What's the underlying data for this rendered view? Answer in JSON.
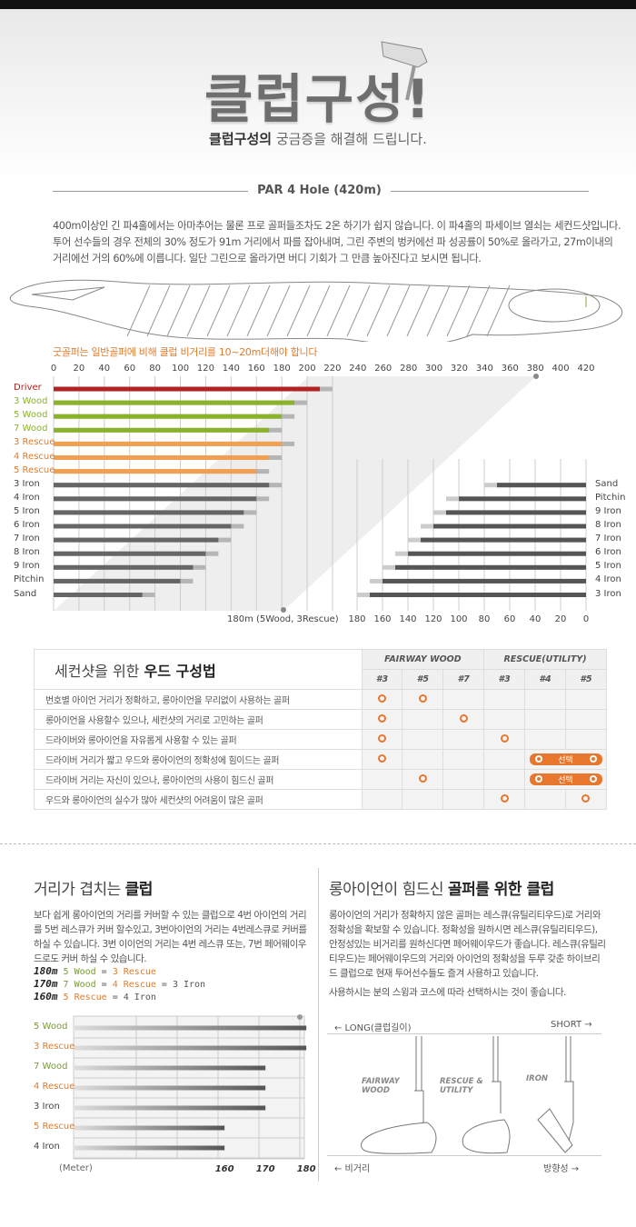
{
  "header": {
    "title": "클럽구성",
    "title_mark": "!",
    "subtitle_bold": "클럽구성의",
    "subtitle_rest": " 궁금증을 해결해 드립니다.",
    "section": "PAR 4 Hole (420m)"
  },
  "intro": {
    "lines": [
      "400m이상인 긴 파4홀에서는 아마추어는 물론 프로 골퍼들조차도 2온 하기가 쉽지 않습니다. 이 파4홀의 파세이브 열쇠는 세컨드샷입니다.",
      "투어 선수들의 경우 전체의 30% 정도가 91m 거리에서 파를 잡아내며, 그린 주변의 벙커에선 파 성공률이 50%로 올라가고, 27m이내의",
      "거리에선 거의 60%에 이릅니다. 일단 그린으로 올라가면 버디 기회가 그 만큼 높아진다고 보시면 됩니다."
    ]
  },
  "note": "굿골퍼는 일반골퍼에 비해 클럽 비거리를 10~20m더해야 합니다",
  "colors": {
    "driver": "#b22222",
    "wood": "#8ab32a",
    "rescue": "#f0a050",
    "iron": "#666666",
    "extra": "#b5b5b5",
    "accent": "#e8772e"
  },
  "chart_data": [
    {
      "type": "bar",
      "orientation": "horizontal",
      "xlim": [
        0,
        420
      ],
      "xticks": [
        0,
        20,
        40,
        60,
        80,
        100,
        120,
        140,
        160,
        180,
        200,
        220,
        240,
        260,
        280,
        300,
        320,
        340,
        360,
        380,
        400,
        420
      ],
      "annotation": "180m (5Wood, 3Rescue)",
      "categories": [
        "Driver",
        "3 Wood",
        "5 Wood",
        "7 Wood",
        "3 Rescue",
        "4 Rescue",
        "5 Rescue",
        "3 Iron",
        "4 Iron",
        "5 Iron",
        "6 Iron",
        "7 Iron",
        "8 Iron",
        "9 Iron",
        "Pitchin",
        "Sand"
      ],
      "groups": [
        "driver",
        "wood",
        "wood",
        "wood",
        "rescue",
        "rescue",
        "rescue",
        "iron",
        "iron",
        "iron",
        "iron",
        "iron",
        "iron",
        "iron",
        "iron",
        "iron"
      ],
      "series": [
        {
          "values": [
            210,
            190,
            180,
            170,
            180,
            170,
            160,
            170,
            160,
            150,
            140,
            130,
            120,
            110,
            100,
            70
          ]
        },
        {
          "values": [
            220,
            200,
            190,
            180,
            190,
            180,
            170,
            180,
            170,
            160,
            150,
            140,
            130,
            120,
            110,
            80
          ]
        }
      ]
    },
    {
      "type": "bar",
      "orientation": "horizontal",
      "reversed": true,
      "xlim": [
        0,
        180
      ],
      "xticks": [
        180,
        160,
        140,
        120,
        100,
        80,
        60,
        40,
        20,
        0
      ],
      "categories": [
        "Sand",
        "Pitchin",
        "9 Iron",
        "8 Iron",
        "7 Iron",
        "6 Iron",
        "5 Iron",
        "4 Iron",
        "3 Iron"
      ],
      "series": [
        {
          "values": [
            70,
            100,
            110,
            120,
            130,
            140,
            150,
            160,
            170
          ]
        },
        {
          "values": [
            80,
            110,
            120,
            130,
            140,
            150,
            160,
            170,
            180
          ]
        }
      ]
    },
    {
      "type": "bar",
      "orientation": "horizontal",
      "xlabel": "(Meter)",
      "xticks": [
        160,
        170,
        180
      ],
      "categories": [
        "5 Wood",
        "3 Rescue",
        "7 Wood",
        "4 Rescue",
        "3 Iron",
        "5 Rescue",
        "4 Iron"
      ],
      "groups": [
        "wood",
        "rescue",
        "wood",
        "rescue",
        "iron",
        "rescue",
        "iron"
      ],
      "values": [
        180,
        180,
        170,
        170,
        170,
        160,
        160
      ]
    }
  ],
  "table": {
    "title_light": "세컨샷을 위한 ",
    "title_bold": "우드 구성법",
    "group1": "FAIRWAY WOOD",
    "group2": "RESCUE(UTILITY)",
    "cols": [
      "#3",
      "#5",
      "#7",
      "#3",
      "#4",
      "#5"
    ],
    "select_label": "선택",
    "rows": [
      {
        "q": "번호별 아이언 거리가 정확하고, 롱아이언을 무리없이 사용하는 골퍼",
        "marks": [
          1,
          1,
          0,
          0,
          0,
          0
        ]
      },
      {
        "q": "롱아이언을 사용할수 있으나, 세컨샷의 거리로 고민하는 골퍼",
        "marks": [
          1,
          0,
          1,
          0,
          0,
          0
        ]
      },
      {
        "q": "드라이버와 롱아이언을 자유롭게 사용할 수 있는 골퍼",
        "marks": [
          1,
          0,
          0,
          1,
          0,
          0
        ]
      },
      {
        "q": "드라이버 거리가 짧고 우드와 롱아이언의 정확성에 힘이드는 골퍼",
        "marks": [
          1,
          0,
          0,
          0,
          2,
          2
        ]
      },
      {
        "q": "드라이버 거리는 자신이 있으나, 롱아이언의 사용이 힘드신 골퍼",
        "marks": [
          0,
          1,
          0,
          0,
          2,
          2
        ]
      },
      {
        "q": "우드와 롱아이언의 실수가 많아 세컨샷의 어려움이 많은 골퍼",
        "marks": [
          0,
          0,
          0,
          1,
          0,
          1
        ]
      }
    ]
  },
  "overlap": {
    "title_light": "거리가 겹치는 ",
    "title_bold": "클럽",
    "text": "보다 쉽게 롱아이언의 거리를 커버할 수 있는 클럽으로 4번 아이언의 거리를 5번 레스큐가 커버 할수있고, 3번아이언의 거리는 4번레스큐로 커버를 하실 수 있습니다. 3번 이이언의 거리는 4번 레스큐 또는, 7번 페어웨이우드로도 커버 하실 수 있습니다.",
    "formulas": [
      {
        "dist": "180m",
        "a": "5 Wood",
        "b": "3 Rescue",
        "c": ""
      },
      {
        "dist": "170m",
        "a": "7 Wood",
        "b": "4 Rescue",
        "c": "3 Iron"
      },
      {
        "dist": "160m",
        "a": "5 Rescue",
        "b": "4 Iron",
        "c": ""
      }
    ]
  },
  "longiron": {
    "title_light": "롱아이언이 힘드신 ",
    "title_bold": "골퍼를 위한 클럽",
    "text": "롱아이언의 거리가 정확하지 않은 골퍼는 레스큐(유틸리티우드)로 거리와 정확성을 확보할 수 있습니다. 정확성을 원하시면 레스큐(유틸리티우드), 안정성있는 비거리를 원하신다면 페어웨이우드가 좋습니다. 레스큐(유틸리티우드)는 페어웨이우드의 거리와 아이언의 정확성을 두루 갖춘 하이브리드 클럽으로 현재 투어선수들도 즐겨 사용하고 있습니다.",
    "text2": "사용하시는 분의 스윙과 코스에 따라 선택하시는 것이 좋습니다.",
    "long": "← LONG(클럽길이)",
    "short": "SHORT →",
    "distance": "← 비거리",
    "direction": "방향성 →",
    "clubs": [
      "FAIRWAY WOOD",
      "RESCUE & UTILITY",
      "IRON"
    ]
  }
}
